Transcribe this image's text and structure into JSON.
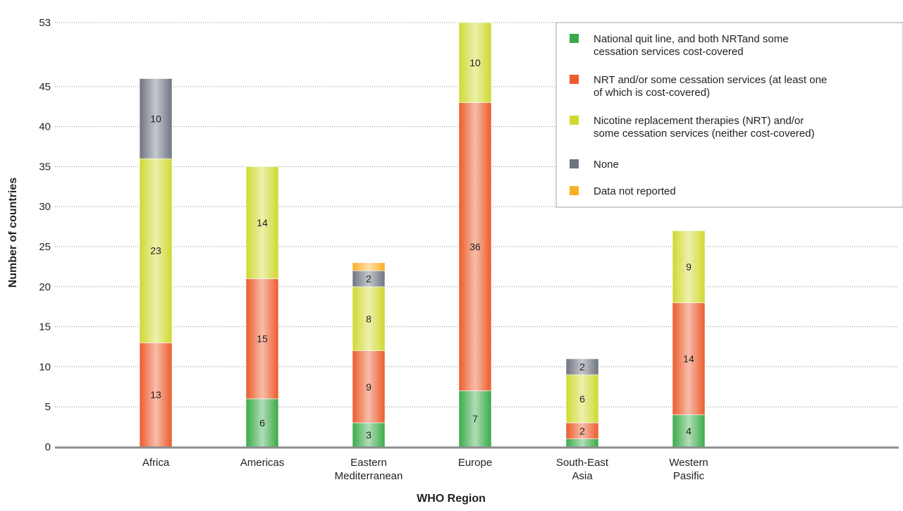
{
  "chart_data": {
    "type": "bar",
    "stacked": true,
    "xlabel": "WHO Region",
    "ylabel": "Number of countries",
    "ylim": [
      0,
      53
    ],
    "yticks": [
      0,
      5,
      10,
      15,
      20,
      25,
      30,
      35,
      40,
      45,
      53
    ],
    "grid": true,
    "legend_position": "top-right",
    "categories": [
      [
        "Africa"
      ],
      [
        "Americas"
      ],
      [
        "Eastern",
        "Mediterranean"
      ],
      [
        "Europe"
      ],
      [
        "South-East",
        "Asia"
      ],
      [
        "Western",
        "Pasific"
      ]
    ],
    "series": [
      {
        "name": [
          "National quit line, and both NRTand some",
          "cessation services cost-covered"
        ],
        "color": "#3aaa49",
        "values": [
          0,
          6,
          3,
          7,
          1,
          4
        ]
      },
      {
        "name": [
          "NRT and/or some cessation services (at least one",
          "of which is cost-covered)"
        ],
        "color": "#ec5b2b",
        "values": [
          13,
          15,
          9,
          36,
          2,
          14
        ]
      },
      {
        "name": [
          "Nicotine replacement therapies (NRT) and/or",
          "some cessation services (neither cost-covered)"
        ],
        "color": "#cfd930",
        "values": [
          23,
          14,
          8,
          10,
          6,
          9
        ]
      },
      {
        "name": [
          "None"
        ],
        "color": "#6e7480",
        "values": [
          10,
          0,
          2,
          0,
          2,
          0
        ]
      },
      {
        "name": [
          "Data not reported"
        ],
        "color": "#f9b023",
        "values": [
          0,
          0,
          1,
          0,
          0,
          0
        ]
      }
    ],
    "data_labels": [
      [
        null,
        13,
        23,
        10,
        null
      ],
      [
        6,
        15,
        14,
        null,
        null
      ],
      [
        3,
        9,
        8,
        2,
        null
      ],
      [
        7,
        36,
        10,
        null,
        null
      ],
      [
        null,
        2,
        6,
        2,
        null
      ],
      [
        4,
        14,
        9,
        null,
        null
      ]
    ]
  }
}
